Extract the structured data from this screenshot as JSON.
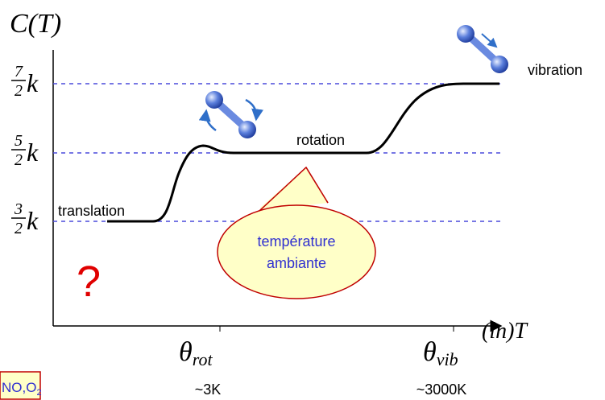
{
  "axes": {
    "y_label": "C(T)",
    "x_label": "(ln)T"
  },
  "levels": [
    {
      "numerator": "7",
      "denominator": "2",
      "unit": "k"
    },
    {
      "numerator": "5",
      "denominator": "2",
      "unit": "k"
    },
    {
      "numerator": "3",
      "denominator": "2",
      "unit": "k"
    }
  ],
  "regimes": {
    "translation": "translation",
    "rotation": "rotation",
    "vibration": "vibration"
  },
  "bubble": {
    "line1": "température",
    "line2": "ambiante"
  },
  "question": "?",
  "thresholds": [
    {
      "symbol": "θ",
      "subscript": "rot",
      "temperature": "~3K"
    },
    {
      "symbol": "θ",
      "subscript": "vib",
      "temperature": "~3000K"
    }
  ],
  "gases": {
    "text": "NO,O",
    "subscript": "2"
  }
}
